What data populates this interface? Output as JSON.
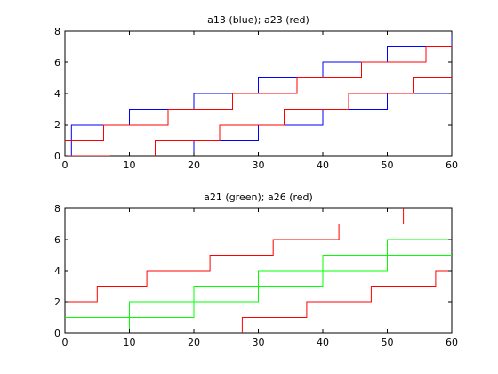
{
  "colors": {
    "blue": "#0000ff",
    "red": "#ff0000",
    "green": "#00ff00",
    "frame": "#000000",
    "background": "#ffffff"
  },
  "chart_data": [
    {
      "type": "line",
      "step": true,
      "title": "a13 (blue); a23 (red)",
      "xlabel": "",
      "ylabel": "",
      "xlim": [
        0,
        60
      ],
      "ylim": [
        0,
        8
      ],
      "xticks": [
        0,
        10,
        20,
        30,
        40,
        50,
        60
      ],
      "yticks": [
        0,
        2,
        4,
        6,
        8
      ],
      "xtick_labels": [
        "0",
        "10",
        "20",
        "30",
        "40",
        "50",
        "60"
      ],
      "ytick_labels": [
        "0",
        "2",
        "4",
        "6",
        "8"
      ],
      "grid": false,
      "series": [
        {
          "color": "#0000ff",
          "points": [
            [
              0,
              0
            ],
            [
              1,
              0
            ],
            [
              1,
              2
            ],
            [
              10,
              2
            ],
            [
              10,
              3
            ],
            [
              20,
              3
            ],
            [
              20,
              4
            ],
            [
              30,
              4
            ],
            [
              30,
              5
            ],
            [
              40,
              5
            ],
            [
              40,
              6
            ],
            [
              50,
              6
            ],
            [
              50,
              7
            ],
            [
              60,
              7
            ],
            [
              60,
              8
            ]
          ]
        },
        {
          "color": "#ff0000",
          "points": [
            [
              0,
              0
            ],
            [
              7,
              0
            ]
          ]
        },
        {
          "color": "#ff0000",
          "points": [
            [
              0,
              1
            ],
            [
              6,
              1
            ],
            [
              6,
              2
            ],
            [
              16,
              2
            ],
            [
              16,
              3
            ],
            [
              26,
              3
            ],
            [
              26,
              4
            ],
            [
              36,
              4
            ],
            [
              36,
              5
            ],
            [
              46,
              5
            ],
            [
              46,
              6
            ],
            [
              56,
              6
            ],
            [
              56,
              7
            ],
            [
              60,
              7
            ]
          ]
        },
        {
          "color": "#0000ff",
          "points": [
            [
              20,
              0
            ],
            [
              20,
              1
            ],
            [
              30,
              1
            ],
            [
              30,
              2
            ],
            [
              40,
              2
            ],
            [
              40,
              3
            ],
            [
              50,
              3
            ],
            [
              50,
              4
            ],
            [
              60,
              4
            ]
          ]
        },
        {
          "color": "#ff0000",
          "points": [
            [
              14,
              0
            ],
            [
              14,
              1
            ],
            [
              24,
              1
            ],
            [
              24,
              2
            ],
            [
              34,
              2
            ],
            [
              34,
              3
            ],
            [
              44,
              3
            ],
            [
              44,
              4
            ],
            [
              54,
              4
            ],
            [
              54,
              5
            ],
            [
              60,
              5
            ]
          ]
        }
      ]
    },
    {
      "type": "line",
      "step": true,
      "title": "a21 (green); a26 (red)",
      "xlabel": "",
      "ylabel": "",
      "xlim": [
        0,
        60
      ],
      "ylim": [
        0,
        8
      ],
      "xticks": [
        0,
        10,
        20,
        30,
        40,
        50,
        60
      ],
      "yticks": [
        0,
        2,
        4,
        6,
        8
      ],
      "xtick_labels": [
        "0",
        "10",
        "20",
        "30",
        "40",
        "50",
        "60"
      ],
      "ytick_labels": [
        "0",
        "2",
        "4",
        "6",
        "8"
      ],
      "grid": false,
      "series": [
        {
          "color": "#ff0000",
          "points": [
            [
              0,
              2
            ],
            [
              5,
              2
            ],
            [
              5,
              3
            ],
            [
              12.7,
              3
            ],
            [
              12.7,
              4
            ],
            [
              22.5,
              4
            ],
            [
              22.5,
              5
            ],
            [
              32.3,
              5
            ],
            [
              32.3,
              6
            ],
            [
              42.5,
              6
            ],
            [
              42.5,
              7
            ],
            [
              52.5,
              7
            ],
            [
              52.5,
              8
            ]
          ]
        },
        {
          "color": "#00ff00",
          "points": [
            [
              0,
              1
            ],
            [
              20,
              1
            ],
            [
              20,
              2
            ],
            [
              30,
              2
            ],
            [
              30,
              3
            ],
            [
              40,
              3
            ],
            [
              40,
              4
            ],
            [
              50,
              4
            ],
            [
              50,
              5
            ],
            [
              60,
              5
            ]
          ]
        },
        {
          "color": "#00ff00",
          "points": [
            [
              10,
              0
            ],
            [
              10,
              2
            ],
            [
              20,
              2
            ],
            [
              20,
              3
            ],
            [
              30,
              3
            ],
            [
              30,
              4
            ],
            [
              40,
              4
            ],
            [
              40,
              5
            ],
            [
              50,
              5
            ],
            [
              50,
              6
            ],
            [
              60,
              6
            ]
          ]
        },
        {
          "color": "#ff0000",
          "points": [
            [
              27.5,
              0
            ],
            [
              27.5,
              1
            ],
            [
              37.5,
              1
            ],
            [
              37.5,
              2
            ],
            [
              47.5,
              2
            ],
            [
              47.5,
              3
            ],
            [
              57.5,
              3
            ],
            [
              57.5,
              4
            ],
            [
              60,
              4
            ]
          ]
        }
      ]
    }
  ]
}
